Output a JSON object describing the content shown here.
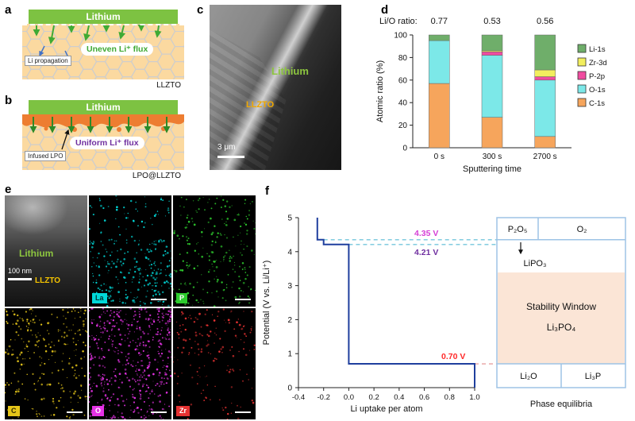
{
  "panel_a": {
    "label": "a",
    "lithium": "Lithium",
    "flux": "Uneven Li⁺ flux",
    "propagation": "Li propagation",
    "substrate": "LLZTO",
    "flux_color": "#3faa34"
  },
  "panel_b": {
    "label": "b",
    "lithium": "Lithium",
    "flux": "Uniform Li⁺ flux",
    "lpo": "Infused LPO",
    "substrate": "LPO@LLZTO",
    "flux_color": "#7030a0",
    "lpo_color": "#ed7d31"
  },
  "panel_c": {
    "label": "c",
    "lithium": "Lithium",
    "llzto": "LLZTO",
    "scalebar": "3 μm"
  },
  "panel_d": {
    "label": "d",
    "ratio_label": "Li/O ratio:",
    "ratios": [
      "0.77",
      "0.53",
      "0.56"
    ]
  },
  "panel_e": {
    "label": "e",
    "lithium": "Lithium",
    "llzto": "LLZTO",
    "scalebar": "100 nm",
    "maps": [
      {
        "name": "La",
        "color": "#00d8d8",
        "text_color": "#003333",
        "dots": 300,
        "bottom_bias": 0.8
      },
      {
        "name": "P",
        "color": "#2ecc2e",
        "text_color": "#ffffff",
        "dots": 230,
        "bottom_bias": 0.6
      },
      {
        "name": "C",
        "color": "#e6c619",
        "text_color": "#332b00",
        "dots": 260,
        "bottom_bias": 0.45
      },
      {
        "name": "O",
        "color": "#e632e6",
        "text_color": "#ffffff",
        "dots": 520,
        "bottom_bias": 0.55
      },
      {
        "name": "Zr",
        "color": "#e63232",
        "text_color": "#ffffff",
        "dots": 170,
        "bottom_bias": 0.5
      }
    ]
  },
  "panel_f": {
    "label": "f",
    "phase_caption": "Phase equilibria",
    "phase": {
      "p2o5": "P₂O₅",
      "o2": "O₂",
      "lipo3": "LiPO₃",
      "window_line1": "Stability Window",
      "window_line2": "Li₃PO₄",
      "li2o": "Li₂O",
      "li3p": "Li₃P"
    },
    "annotations": [
      {
        "text": "4.35 V",
        "color": "#d63fd6"
      },
      {
        "text": "4.21 V",
        "color": "#7030a0"
      },
      {
        "text": "0.70 V",
        "color": "#ff2a2a"
      }
    ]
  },
  "chart_data": [
    {
      "id": "xps-depth-profile",
      "type": "bar",
      "stacked": true,
      "title": "Li/O ratio: 0.77, 0.53, 0.56",
      "categories": [
        "0 s",
        "300 s",
        "2700 s"
      ],
      "series": [
        {
          "name": "C-1s",
          "color": "#f6a55c",
          "values": [
            57,
            27,
            10
          ]
        },
        {
          "name": "O-1s",
          "color": "#7ce8e8",
          "values": [
            38,
            55,
            50
          ]
        },
        {
          "name": "P-2p",
          "color": "#f04ca0",
          "values": [
            0,
            3,
            3
          ]
        },
        {
          "name": "Zr-3d",
          "color": "#f2ee5e",
          "values": [
            0,
            1,
            6
          ]
        },
        {
          "name": "Li-1s",
          "color": "#6fae6a",
          "values": [
            5,
            14,
            31
          ]
        }
      ],
      "legend_order": [
        "Li-1s",
        "Zr-3d",
        "P-2p",
        "O-1s",
        "C-1s"
      ],
      "xlabel": "Sputtering time",
      "ylabel": "Atomic ratio (%)",
      "ylim": [
        0,
        100
      ],
      "yticks": [
        0,
        20,
        40,
        60,
        80,
        100
      ],
      "legend_position": "right",
      "grid": false
    },
    {
      "id": "li-uptake-voltage",
      "type": "line",
      "xlabel": "Li uptake per atom",
      "ylabel": "Potential (V vs. Li/Li⁺)",
      "xlim": [
        -0.4,
        1.0
      ],
      "ylim": [
        0,
        5
      ],
      "xticks": [
        "-0.4",
        "-0.2",
        "0.0",
        "0.2",
        "0.4",
        "0.6",
        "0.8",
        "1.0"
      ],
      "yticks": [
        0,
        1,
        2,
        3,
        4,
        5
      ],
      "line_color": "#1f3f9e",
      "points": [
        [
          -0.25,
          5
        ],
        [
          -0.25,
          4.35
        ],
        [
          -0.2,
          4.35
        ],
        [
          -0.2,
          4.21
        ],
        [
          0,
          4.21
        ],
        [
          0,
          0.7
        ],
        [
          1.0,
          0.7
        ],
        [
          1.0,
          0
        ]
      ],
      "guides": [
        {
          "y": 4.35,
          "x_from": -0.2,
          "color": "#74c6dc",
          "label": "4.35 V"
        },
        {
          "y": 4.21,
          "x_from": 0.0,
          "color": "#74c6dc",
          "label": "4.21 V"
        },
        {
          "y": 0.7,
          "x_from": 1.0,
          "color": "#e8a0a0",
          "label": "0.70 V"
        }
      ],
      "grid": false
    }
  ]
}
